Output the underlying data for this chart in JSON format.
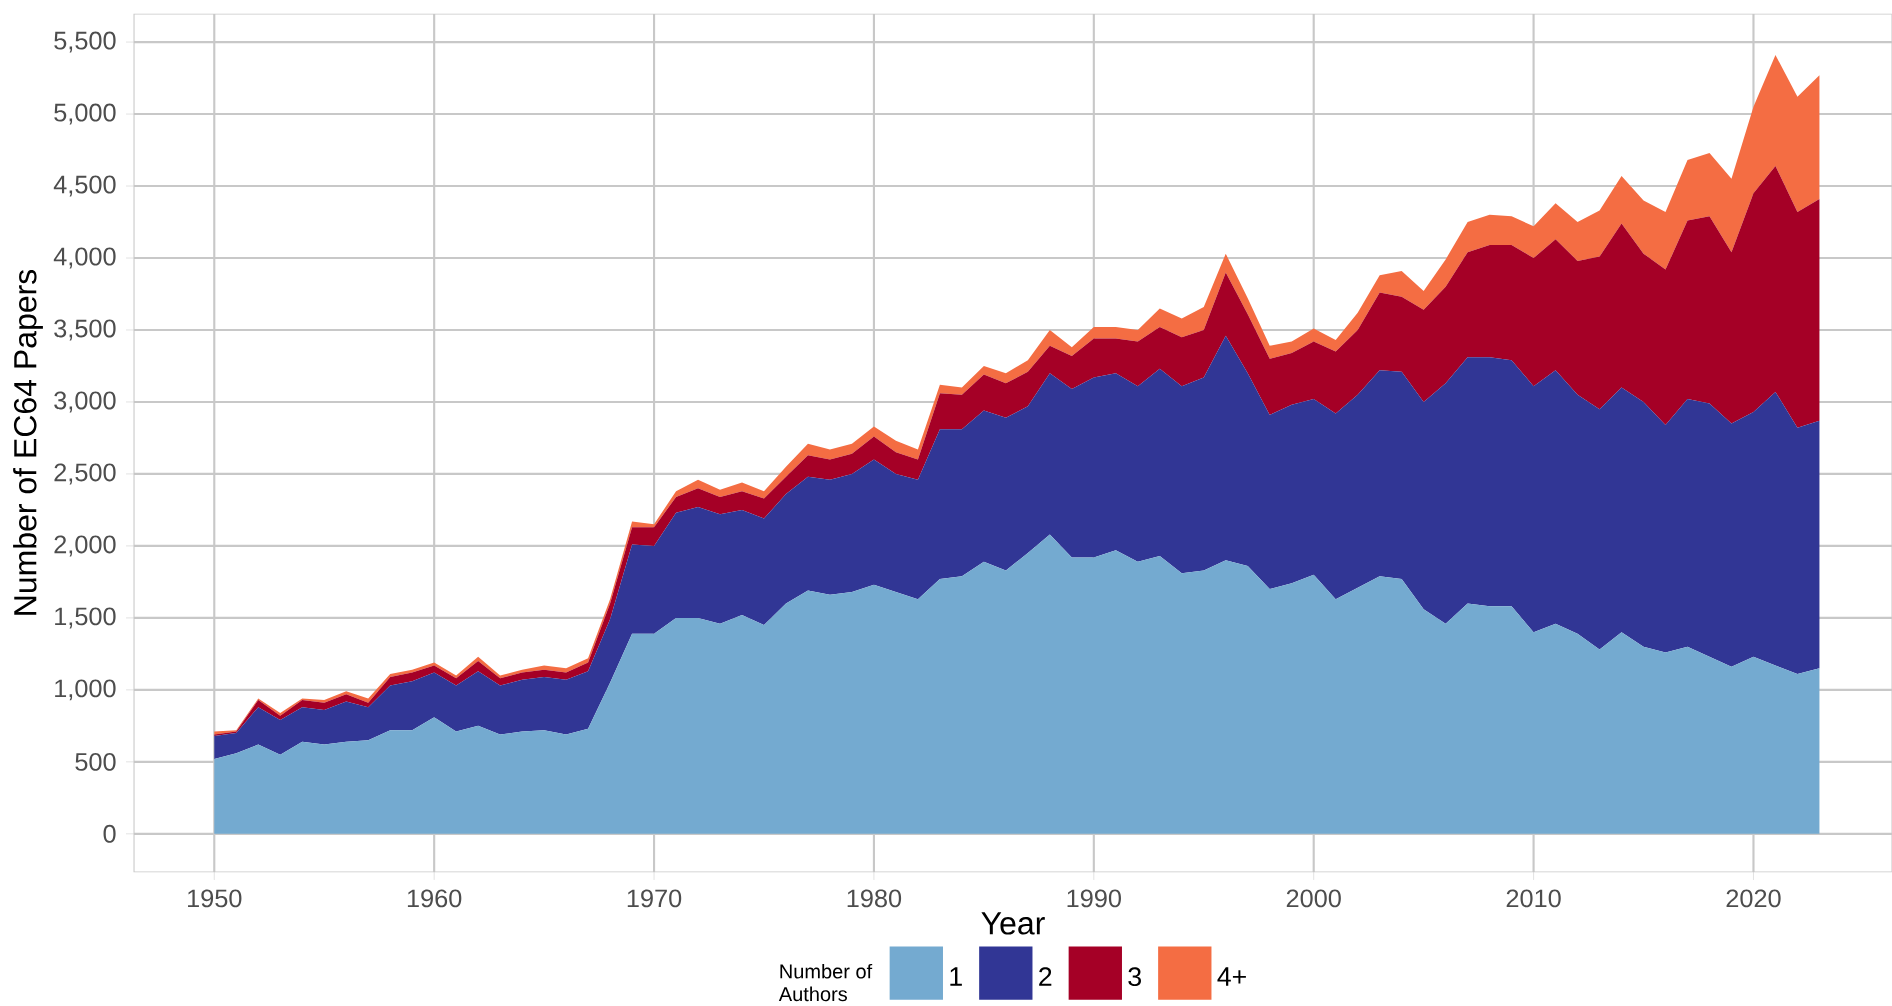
{
  "chart_data": {
    "type": "area",
    "stacked": true,
    "xlabel": "Year",
    "ylabel": "Number of EC64 Papers",
    "legend_title": "Number of Authors",
    "legend": "bottom",
    "grid": true,
    "x": [
      1950,
      1951,
      1952,
      1953,
      1954,
      1955,
      1956,
      1957,
      1958,
      1959,
      1960,
      1961,
      1962,
      1963,
      1964,
      1965,
      1966,
      1967,
      1968,
      1969,
      1970,
      1971,
      1972,
      1973,
      1974,
      1975,
      1976,
      1977,
      1978,
      1979,
      1980,
      1981,
      1982,
      1983,
      1984,
      1985,
      1986,
      1987,
      1988,
      1989,
      1990,
      1991,
      1992,
      1993,
      1994,
      1995,
      1996,
      1997,
      1998,
      1999,
      2000,
      2001,
      2002,
      2003,
      2004,
      2005,
      2006,
      2007,
      2008,
      2009,
      2010,
      2011,
      2012,
      2013,
      2014,
      2015,
      2016,
      2017,
      2018,
      2019,
      2020,
      2021,
      2022,
      2023
    ],
    "series": [
      {
        "name": "1",
        "color": "#74aad0",
        "values": [
          520,
          560,
          620,
          550,
          640,
          620,
          640,
          650,
          720,
          720,
          810,
          710,
          750,
          690,
          710,
          720,
          690,
          730,
          1050,
          1390,
          1390,
          1500,
          1500,
          1460,
          1520,
          1450,
          1600,
          1690,
          1660,
          1680,
          1730,
          1680,
          1630,
          1770,
          1790,
          1890,
          1830,
          1950,
          2080,
          1920,
          1920,
          1970,
          1890,
          1930,
          1810,
          1830,
          1900,
          1860,
          1700,
          1740,
          1800,
          1630,
          1710,
          1790,
          1770,
          1560,
          1460,
          1600,
          1580,
          1580,
          1400,
          1460,
          1390,
          1280,
          1400,
          1300,
          1260,
          1300,
          1230,
          1160,
          1230,
          1170,
          1110,
          1150
        ]
      },
      {
        "name": "2",
        "color": "#313695",
        "values": [
          160,
          140,
          260,
          240,
          240,
          240,
          280,
          230,
          310,
          340,
          310,
          320,
          380,
          340,
          360,
          370,
          380,
          400,
          440,
          620,
          610,
          730,
          770,
          760,
          730,
          740,
          760,
          790,
          800,
          820,
          870,
          820,
          830,
          1040,
          1020,
          1050,
          1060,
          1020,
          1120,
          1170,
          1250,
          1230,
          1220,
          1300,
          1300,
          1340,
          1560,
          1340,
          1210,
          1240,
          1220,
          1290,
          1340,
          1430,
          1440,
          1440,
          1670,
          1710,
          1730,
          1710,
          1710,
          1760,
          1660,
          1670,
          1700,
          1700,
          1580,
          1720,
          1760,
          1690,
          1700,
          1900,
          1710,
          1720
        ]
      },
      {
        "name": "3",
        "color": "#a50026",
        "values": [
          10,
          10,
          50,
          30,
          50,
          50,
          50,
          30,
          60,
          60,
          50,
          50,
          70,
          50,
          50,
          50,
          50,
          60,
          110,
          120,
          130,
          110,
          130,
          120,
          130,
          140,
          120,
          150,
          140,
          140,
          160,
          150,
          140,
          250,
          240,
          250,
          240,
          240,
          190,
          230,
          270,
          240,
          310,
          290,
          340,
          330,
          440,
          410,
          390,
          360,
          400,
          430,
          450,
          540,
          520,
          640,
          670,
          730,
          780,
          800,
          890,
          910,
          930,
          1060,
          1140,
          1030,
          1080,
          1240,
          1300,
          1190,
          1520,
          1570,
          1500,
          1540
        ]
      },
      {
        "name": "4+",
        "color": "#f46d43",
        "values": [
          20,
          10,
          10,
          20,
          10,
          20,
          20,
          30,
          20,
          20,
          20,
          20,
          30,
          20,
          20,
          30,
          30,
          30,
          30,
          40,
          20,
          40,
          60,
          50,
          60,
          50,
          70,
          80,
          70,
          70,
          70,
          80,
          70,
          60,
          50,
          60,
          70,
          80,
          110,
          60,
          80,
          80,
          80,
          130,
          130,
          160,
          130,
          110,
          90,
          80,
          90,
          80,
          120,
          120,
          180,
          130,
          190,
          210,
          210,
          200,
          220,
          250,
          270,
          320,
          330,
          370,
          400,
          420,
          440,
          510,
          600,
          770,
          800,
          860
        ]
      }
    ],
    "xlim": [
      1946.35,
      2026.3
    ],
    "ylim": [
      -265,
      5695
    ],
    "xticks": [
      1950,
      1960,
      1970,
      1980,
      1990,
      2000,
      2010,
      2020
    ],
    "yticks": [
      0,
      500,
      {
        "value": 1000,
        "label": "1,000"
      },
      {
        "value": 1500,
        "label": "1,500"
      },
      {
        "value": 2000,
        "label": "2,000"
      },
      {
        "value": 2500,
        "label": "2,500"
      },
      {
        "value": 3000,
        "label": "3,000"
      },
      {
        "value": 3500,
        "label": "3,500"
      },
      {
        "value": 4000,
        "label": "4,000"
      },
      {
        "value": 4500,
        "label": "4,500"
      },
      {
        "value": 5000,
        "label": "5,000"
      },
      {
        "value": 5500,
        "label": "5,500"
      }
    ]
  }
}
